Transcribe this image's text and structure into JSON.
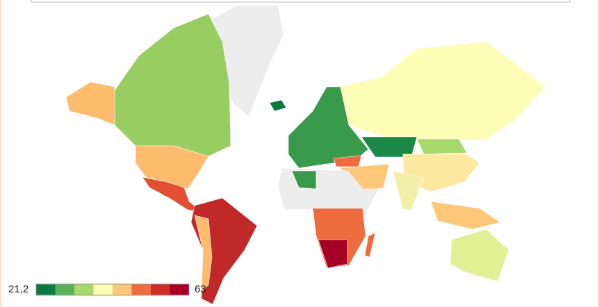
{
  "legend": {
    "min": {
      "value": 21.2,
      "label": "21,2"
    },
    "max": 63,
    "colors": [
      "#0b7a3e",
      "#58b25a",
      "#a6d86a",
      "#fefdb7",
      "#fdc779",
      "#ee6b3e",
      "#cf2c2a",
      "#a50026"
    ]
  }
}
